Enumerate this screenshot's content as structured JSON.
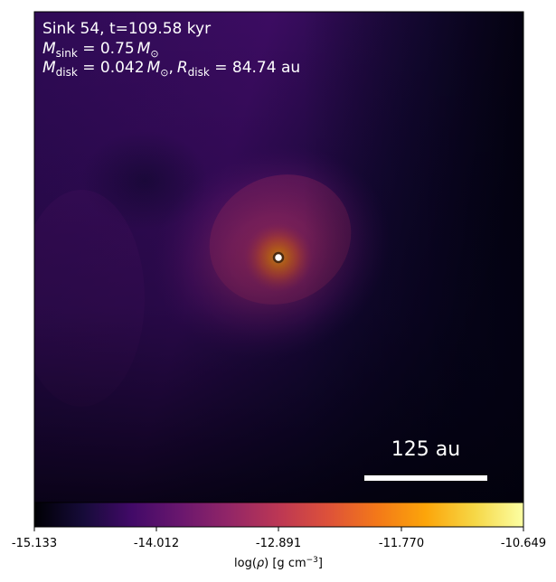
{
  "image": {
    "type": "density-projection",
    "colormap": "inferno",
    "annotation": {
      "line1": "Sink 54, t=109.58 kyr",
      "line2": {
        "prefix": "M",
        "subscript": "sink",
        "value": " = 0.75",
        "unit": "M",
        "unit_subscript": "⊙"
      },
      "line3": {
        "prefix": "M",
        "subscript": "disk",
        "value": " = 0.042",
        "unit": "M",
        "unit_subscript": "⊙",
        "separator": ",",
        "r_prefix": "R",
        "r_subscript": "disk",
        "r_value": " = 84.74 au"
      }
    },
    "scale_bar": {
      "label": "125 au"
    },
    "sink_marker": "sink-54"
  },
  "colorbar": {
    "ticks": [
      "-15.133",
      "-14.012",
      "-12.891",
      "-11.770",
      "-10.649"
    ],
    "label_prefix": "log(",
    "label_rho": "ρ",
    "label_units": ") [g cm",
    "label_exp": "−3",
    "label_close": "]",
    "min": -15.133,
    "max": -10.649
  },
  "colors": {
    "background_dark": "#0b0620",
    "mid_purple": "#4a0f6b",
    "core_orange": "#f37a1c",
    "text": "#ffffff"
  }
}
